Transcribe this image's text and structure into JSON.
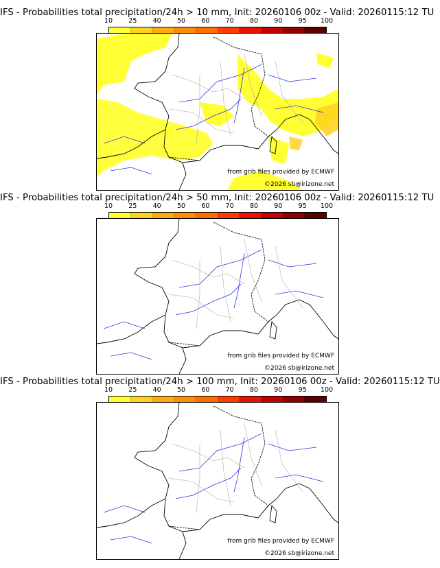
{
  "colorbar": {
    "ticks": [
      "10",
      "25",
      "40",
      "50",
      "60",
      "70",
      "80",
      "90",
      "95",
      "100"
    ],
    "colors": [
      "#ffff33",
      "#ffd21e",
      "#ffaa14",
      "#ff8c0a",
      "#ff6e00",
      "#ff3c00",
      "#e61400",
      "#be0000",
      "#8c0000",
      "#5a0000"
    ]
  },
  "panels": [
    {
      "title": "IFS - Probabilities total precipitation/24h > 10 mm, Init: 20260106 00z - Valid: 20260115:12 TU",
      "source_note": "from grib files provided by ECMWF",
      "copyright": "©2026 sb@irizone.net"
    },
    {
      "title": "IFS - Probabilities total precipitation/24h > 50 mm, Init: 20260106 00z - Valid: 20260115:12 TU",
      "source_note": "from grib files provided by ECMWF",
      "copyright": "©2026 sb@irizone.net"
    },
    {
      "title": "IFS - Probabilities total precipitation/24h > 100 mm, Init: 20260106 00z - Valid: 20260115:12 TU",
      "source_note": "from grib files provided by ECMWF",
      "copyright": "©2026 sb@irizone.net"
    }
  ],
  "map_colors": {
    "coast": "#000000",
    "border": "#000000",
    "rivers": "#3333dd",
    "regions": "#aaaaaa",
    "prob_10": "#ffff33",
    "prob_25": "#ffd21e"
  }
}
